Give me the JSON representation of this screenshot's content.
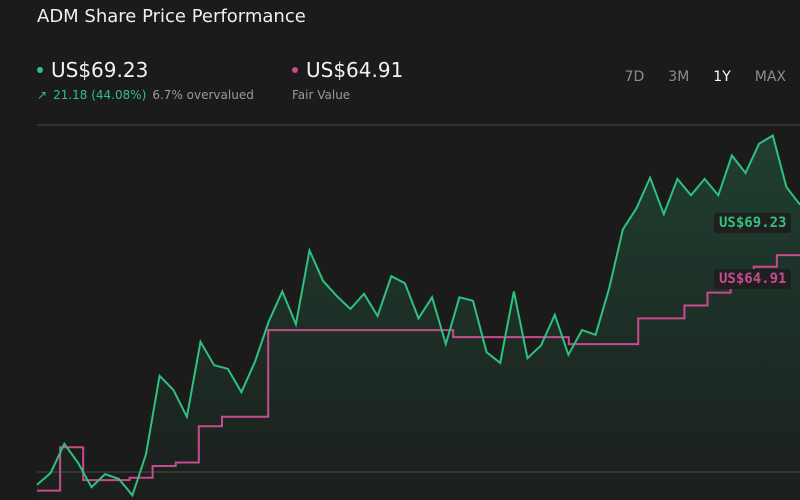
{
  "title": "ADM Share Price Performance",
  "price": {
    "value": "US$69.23",
    "change": "21.18 (44.08%)",
    "valuation": "6.7% overvalued"
  },
  "fair_value": {
    "value": "US$64.91",
    "label": "Fair Value"
  },
  "tabs": [
    "7D",
    "3M",
    "1Y",
    "MAX"
  ],
  "active_tab": "1Y",
  "colors": {
    "background": "#1b1b1b",
    "price_line": "#2ec27e",
    "fair_value_line": "#c84b8e"
  },
  "chart_data": {
    "type": "line",
    "ylim": [
      44,
      76
    ],
    "grid": true,
    "series": [
      {
        "values": [
          45.3,
          46.3,
          48.8,
          47.2,
          45.1,
          46.2,
          45.8,
          44.4,
          47.9,
          54.6,
          53.4,
          51.1,
          57.5,
          55.5,
          55.2,
          53.2,
          55.8,
          59.2,
          61.8,
          59.0,
          65.3,
          62.7,
          61.4,
          60.3,
          61.6,
          59.7,
          63.1,
          62.5,
          59.5,
          61.3,
          57.3,
          61.3,
          61.0,
          56.6,
          55.7,
          61.8,
          56.1,
          57.2,
          59.8,
          56.4,
          58.5,
          58.1,
          62.1,
          67.1,
          68.9,
          71.5,
          68.4,
          71.4,
          70.0,
          71.4,
          70.0,
          73.4,
          71.9,
          74.4,
          75.1,
          70.7,
          69.2
        ]
      },
      {
        "values": [
          44.8,
          48.5,
          45.7,
          45.7,
          45.9,
          46.9,
          47.2,
          50.3,
          51.1,
          51.1,
          58.5,
          58.5,
          58.5,
          58.5,
          58.5,
          58.5,
          58.5,
          58.5,
          57.9,
          57.9,
          57.9,
          57.9,
          57.9,
          57.3,
          57.3,
          57.3,
          59.5,
          59.5,
          60.6,
          61.7,
          62.8,
          63.9,
          64.9
        ]
      }
    ]
  }
}
